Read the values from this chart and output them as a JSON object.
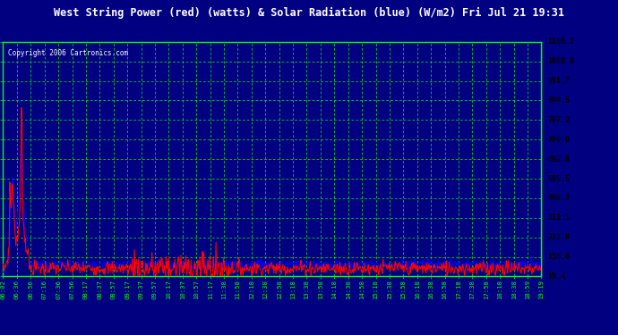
{
  "title": "West String Power (red) (watts) & Solar Radiation (blue) (W/m2) Fri Jul 21 19:31",
  "copyright": "Copyright 2006 Cartronics.com",
  "yticks": [
    19.4,
    116.6,
    213.8,
    311.1,
    408.3,
    505.5,
    602.8,
    700.0,
    797.2,
    894.5,
    991.7,
    1088.9,
    1186.2
  ],
  "xtick_labels": [
    "06:02",
    "06:36",
    "06:56",
    "07:16",
    "07:36",
    "07:56",
    "08:17",
    "08:37",
    "08:57",
    "09:17",
    "09:37",
    "09:57",
    "10:17",
    "10:37",
    "10:57",
    "11:17",
    "11:38",
    "11:58",
    "12:18",
    "12:38",
    "12:58",
    "13:18",
    "13:38",
    "13:58",
    "14:18",
    "14:38",
    "14:58",
    "15:18",
    "15:38",
    "15:58",
    "16:18",
    "16:38",
    "16:58",
    "17:18",
    "17:38",
    "17:58",
    "18:18",
    "18:38",
    "18:59",
    "19:19"
  ],
  "ymin": 19.4,
  "ymax": 1186.2,
  "bg_color": "#000080",
  "grid_color": "#00ff00",
  "line_red": "#ff0000",
  "line_blue": "#0000ff",
  "label_color": "#00ff00",
  "right_panel_color": "#ffffff",
  "right_label_color": "#000000",
  "title_color": "#ffffff",
  "copyright_color": "#ffffff"
}
